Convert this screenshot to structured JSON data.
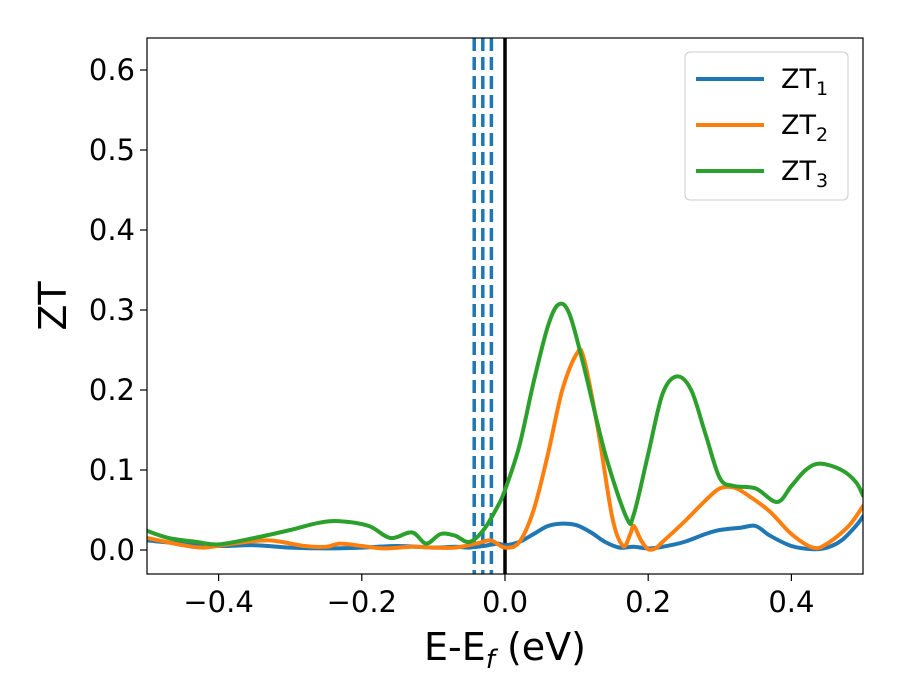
{
  "chart_data": {
    "type": "line",
    "xlabel": "E-E",
    "xlabel_sub": "f",
    "xlabel_unit": " (eV)",
    "ylabel": "ZT",
    "xlim": [
      -0.5,
      0.5
    ],
    "ylim": [
      -0.03,
      0.64
    ],
    "grid": false,
    "legend_position": "top-right",
    "x_ticks": [
      -0.4,
      -0.2,
      0.0,
      0.2,
      0.4
    ],
    "x_tick_labels": [
      "−0.4",
      "−0.2",
      "0.0",
      "0.2",
      "0.4"
    ],
    "y_ticks": [
      0.0,
      0.1,
      0.2,
      0.3,
      0.4,
      0.5,
      0.6
    ],
    "y_tick_labels": [
      "0.0",
      "0.1",
      "0.2",
      "0.3",
      "0.4",
      "0.5",
      "0.6"
    ],
    "vlines": [
      {
        "x": -0.043,
        "style": "dashed",
        "color": "#1f77b4"
      },
      {
        "x": -0.031,
        "style": "dashed",
        "color": "#1f77b4"
      },
      {
        "x": -0.019,
        "style": "dashed",
        "color": "#1f77b4"
      },
      {
        "x": 0.0,
        "style": "solid",
        "color": "#000000"
      }
    ],
    "series": [
      {
        "name": "ZT",
        "sub": "1",
        "color": "#1f77b4",
        "points": [
          [
            -0.5,
            0.012
          ],
          [
            -0.45,
            0.008
          ],
          [
            -0.4,
            0.005
          ],
          [
            -0.35,
            0.006
          ],
          [
            -0.3,
            0.003
          ],
          [
            -0.25,
            0.002
          ],
          [
            -0.2,
            0.003
          ],
          [
            -0.15,
            0.005
          ],
          [
            -0.1,
            0.003
          ],
          [
            -0.07,
            0.004
          ],
          [
            -0.05,
            0.003
          ],
          [
            -0.03,
            0.005
          ],
          [
            -0.01,
            0.008
          ],
          [
            0.0,
            0.006
          ],
          [
            0.02,
            0.01
          ],
          [
            0.04,
            0.02
          ],
          [
            0.06,
            0.03
          ],
          [
            0.08,
            0.033
          ],
          [
            0.1,
            0.031
          ],
          [
            0.12,
            0.022
          ],
          [
            0.14,
            0.01
          ],
          [
            0.16,
            0.003
          ],
          [
            0.18,
            0.004
          ],
          [
            0.2,
            0.002
          ],
          [
            0.22,
            0.004
          ],
          [
            0.25,
            0.01
          ],
          [
            0.28,
            0.02
          ],
          [
            0.3,
            0.025
          ],
          [
            0.33,
            0.028
          ],
          [
            0.35,
            0.03
          ],
          [
            0.37,
            0.018
          ],
          [
            0.4,
            0.005
          ],
          [
            0.43,
            0.001
          ],
          [
            0.45,
            0.003
          ],
          [
            0.47,
            0.012
          ],
          [
            0.49,
            0.03
          ],
          [
            0.5,
            0.042
          ]
        ]
      },
      {
        "name": "ZT",
        "sub": "2",
        "color": "#ff7f0e",
        "points": [
          [
            -0.5,
            0.015
          ],
          [
            -0.45,
            0.006
          ],
          [
            -0.42,
            0.003
          ],
          [
            -0.38,
            0.008
          ],
          [
            -0.33,
            0.012
          ],
          [
            -0.28,
            0.005
          ],
          [
            -0.25,
            0.004
          ],
          [
            -0.23,
            0.008
          ],
          [
            -0.2,
            0.005
          ],
          [
            -0.17,
            0.002
          ],
          [
            -0.13,
            0.004
          ],
          [
            -0.1,
            0.003
          ],
          [
            -0.07,
            0.003
          ],
          [
            -0.04,
            0.008
          ],
          [
            -0.02,
            0.012
          ],
          [
            0.0,
            0.003
          ],
          [
            0.02,
            0.01
          ],
          [
            0.04,
            0.05
          ],
          [
            0.06,
            0.12
          ],
          [
            0.08,
            0.2
          ],
          [
            0.1,
            0.245
          ],
          [
            0.11,
            0.24
          ],
          [
            0.13,
            0.15
          ],
          [
            0.15,
            0.04
          ],
          [
            0.165,
            0.005
          ],
          [
            0.175,
            0.02
          ],
          [
            0.18,
            0.03
          ],
          [
            0.19,
            0.012
          ],
          [
            0.2,
            0.001
          ],
          [
            0.21,
            0.002
          ],
          [
            0.22,
            0.01
          ],
          [
            0.25,
            0.035
          ],
          [
            0.28,
            0.062
          ],
          [
            0.3,
            0.077
          ],
          [
            0.32,
            0.078
          ],
          [
            0.34,
            0.068
          ],
          [
            0.37,
            0.048
          ],
          [
            0.4,
            0.02
          ],
          [
            0.43,
            0.003
          ],
          [
            0.45,
            0.008
          ],
          [
            0.48,
            0.03
          ],
          [
            0.5,
            0.055
          ]
        ]
      },
      {
        "name": "ZT",
        "sub": "3",
        "color": "#2ca02c",
        "points": [
          [
            -0.5,
            0.024
          ],
          [
            -0.47,
            0.015
          ],
          [
            -0.43,
            0.01
          ],
          [
            -0.4,
            0.007
          ],
          [
            -0.35,
            0.015
          ],
          [
            -0.3,
            0.025
          ],
          [
            -0.26,
            0.034
          ],
          [
            -0.23,
            0.036
          ],
          [
            -0.19,
            0.03
          ],
          [
            -0.16,
            0.015
          ],
          [
            -0.13,
            0.022
          ],
          [
            -0.11,
            0.008
          ],
          [
            -0.09,
            0.02
          ],
          [
            -0.07,
            0.018
          ],
          [
            -0.05,
            0.01
          ],
          [
            -0.03,
            0.025
          ],
          [
            -0.01,
            0.055
          ],
          [
            0.0,
            0.075
          ],
          [
            0.02,
            0.13
          ],
          [
            0.04,
            0.21
          ],
          [
            0.06,
            0.28
          ],
          [
            0.075,
            0.307
          ],
          [
            0.09,
            0.295
          ],
          [
            0.11,
            0.23
          ],
          [
            0.14,
            0.12
          ],
          [
            0.17,
            0.04
          ],
          [
            0.18,
            0.045
          ],
          [
            0.2,
            0.12
          ],
          [
            0.22,
            0.195
          ],
          [
            0.24,
            0.217
          ],
          [
            0.26,
            0.2
          ],
          [
            0.28,
            0.145
          ],
          [
            0.3,
            0.09
          ],
          [
            0.32,
            0.08
          ],
          [
            0.35,
            0.077
          ],
          [
            0.38,
            0.06
          ],
          [
            0.4,
            0.08
          ],
          [
            0.42,
            0.1
          ],
          [
            0.44,
            0.108
          ],
          [
            0.47,
            0.1
          ],
          [
            0.49,
            0.085
          ],
          [
            0.5,
            0.068
          ]
        ]
      }
    ]
  }
}
